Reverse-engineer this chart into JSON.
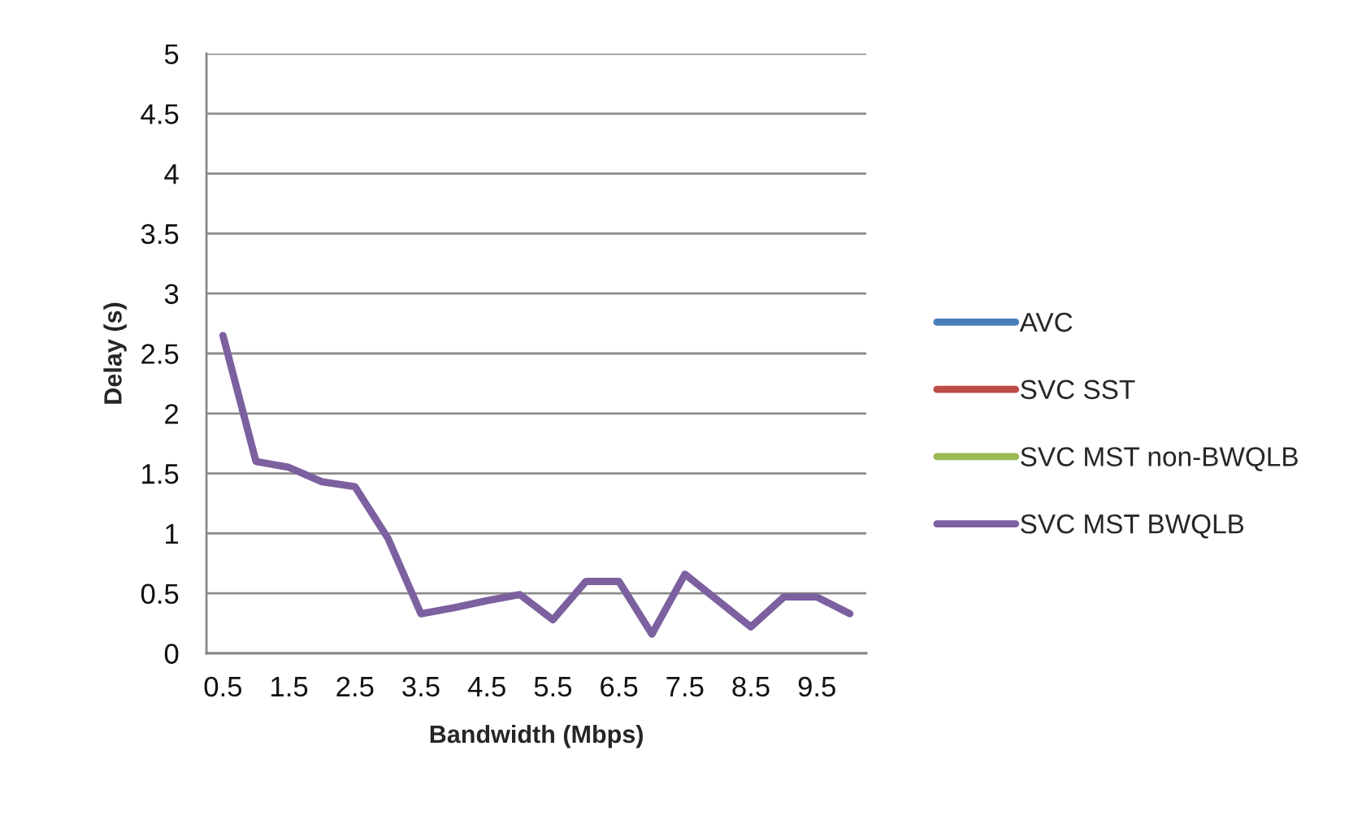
{
  "chart_data": {
    "type": "line",
    "xlabel": "Bandwidth (Mbps)",
    "ylabel": "Delay (s)",
    "categories": [
      "0.5",
      null,
      "1.5",
      null,
      "2.5",
      null,
      "3.5",
      null,
      "4.5",
      null,
      "5.5",
      null,
      "6.5",
      null,
      "7.5",
      null,
      "8.5",
      null,
      "9.5",
      null
    ],
    "series": [
      {
        "name": "AVC",
        "color": "#4a7ebb",
        "values": [
          null,
          null,
          null,
          null,
          null,
          null,
          null,
          null,
          null,
          null,
          null,
          null,
          null,
          null,
          null,
          null,
          null,
          null,
          null,
          null
        ]
      },
      {
        "name": "SVC SST",
        "color": "#be4b48",
        "values": [
          null,
          null,
          null,
          null,
          null,
          null,
          null,
          null,
          null,
          null,
          null,
          null,
          null,
          null,
          null,
          null,
          null,
          null,
          null,
          null
        ]
      },
      {
        "name": "SVC MST non-BWQLB",
        "color": "#98b954",
        "values": [
          null,
          null,
          null,
          null,
          null,
          null,
          null,
          null,
          null,
          null,
          null,
          null,
          null,
          null,
          null,
          null,
          null,
          null,
          null,
          null
        ]
      },
      {
        "name": "SVC MST BWQLB",
        "color": "#7d60a0",
        "values": [
          2.65,
          1.6,
          1.55,
          1.43,
          1.39,
          0.96,
          0.33,
          0.38,
          0.44,
          0.49,
          0.28,
          0.6,
          0.6,
          0.16,
          0.66,
          0.44,
          0.22,
          0.47,
          0.47,
          0.33
        ]
      }
    ],
    "ylim": [
      0,
      5
    ],
    "yticks": [
      0,
      0.5,
      1,
      1.5,
      2,
      2.5,
      3,
      3.5,
      4,
      4.5,
      5
    ],
    "grid": "y",
    "legend": "right"
  }
}
